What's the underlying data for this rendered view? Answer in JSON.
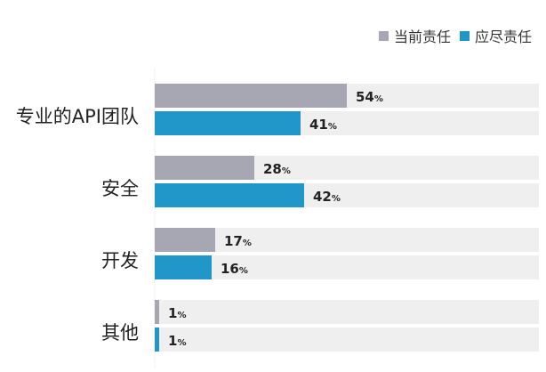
{
  "chart_data": {
    "type": "bar",
    "orientation": "horizontal",
    "categories": [
      "专业的API团队",
      "安全",
      "开发",
      "其他"
    ],
    "series": [
      {
        "name": "当前责任",
        "values": [
          54,
          28,
          17,
          1
        ],
        "color": "#a7a6b3"
      },
      {
        "name": "应尽责任",
        "values": [
          41,
          42,
          16,
          1
        ],
        "color": "#2196c9"
      }
    ],
    "value_suffix": "%",
    "xlim": [
      0,
      100
    ],
    "track_color": "#efefef",
    "legend_position": "top-right",
    "grid": false
  }
}
